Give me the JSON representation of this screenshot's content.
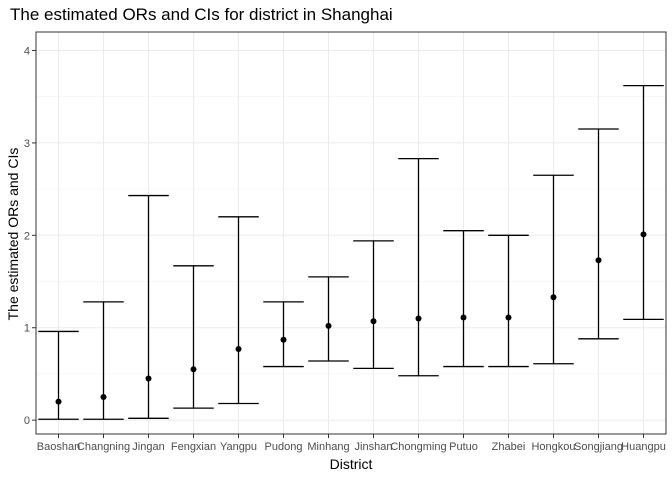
{
  "chart_data": {
    "type": "errorbar",
    "title": "The estimated ORs and CIs for district in Shanghai",
    "xlabel": "District",
    "ylabel": "The estimated ORs and CIs",
    "ylim": [
      -0.15,
      4.2
    ],
    "yticks": [
      0,
      1,
      2,
      3,
      4
    ],
    "grid": true,
    "categories": [
      "Baoshan",
      "Changning",
      "Jingan",
      "Fengxian",
      "Yangpu",
      "Pudong",
      "Minhang",
      "Jinshan",
      "Chongming",
      "Putuo",
      "Zhabei",
      "Hongkou",
      "Songjiang",
      "Huangpu"
    ],
    "estimate": [
      0.2,
      0.25,
      0.45,
      0.55,
      0.77,
      0.87,
      1.02,
      1.07,
      1.1,
      1.11,
      1.11,
      1.33,
      1.73,
      2.01
    ],
    "lower": [
      0.01,
      0.01,
      0.02,
      0.13,
      0.18,
      0.58,
      0.64,
      0.56,
      0.48,
      0.58,
      0.58,
      0.61,
      0.88,
      1.09
    ],
    "upper": [
      0.96,
      1.28,
      2.43,
      1.67,
      2.2,
      1.28,
      1.55,
      1.94,
      2.83,
      2.05,
      2.0,
      2.65,
      3.15,
      3.62
    ]
  }
}
